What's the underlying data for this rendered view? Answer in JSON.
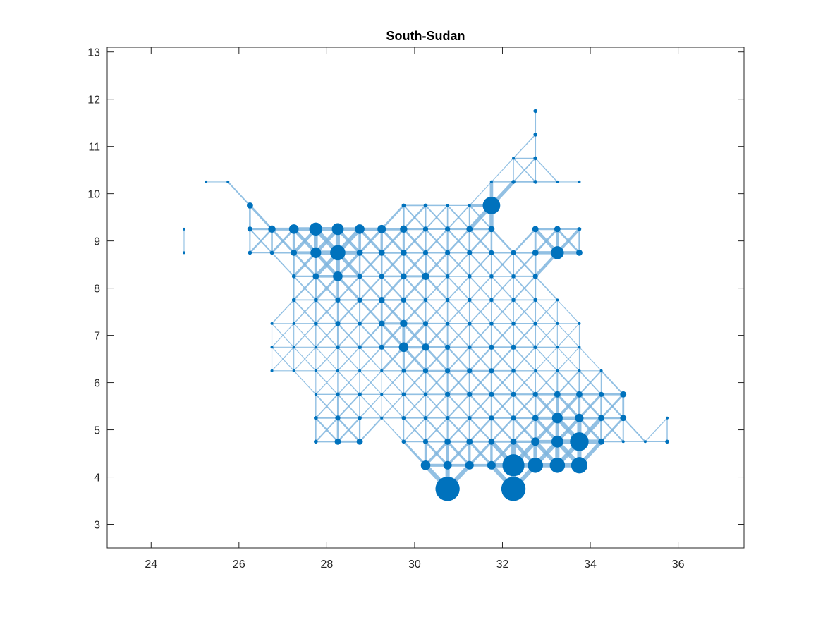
{
  "chart_data": {
    "type": "scatter",
    "title": "South-Sudan",
    "xlabel": "",
    "ylabel": "",
    "xlim": [
      23,
      37.5
    ],
    "ylim": [
      2.5,
      13.1
    ],
    "x_ticks": [
      "24",
      "26",
      "28",
      "30",
      "32",
      "34",
      "36"
    ],
    "y_ticks": [
      "3",
      "4",
      "5",
      "6",
      "7",
      "8",
      "9",
      "10",
      "11",
      "12",
      "13"
    ],
    "grid": false,
    "grid_step": 0.5,
    "node_color": "#0072BD",
    "edge_color": "#7FB5DE",
    "nodes": [
      [
        32.75,
        11.75,
        1
      ],
      [
        32.75,
        11.25,
        1
      ],
      [
        32.25,
        10.75,
        0.5
      ],
      [
        32.75,
        10.75,
        1
      ],
      [
        25.25,
        10.25,
        0.5
      ],
      [
        25.75,
        10.25,
        0.5
      ],
      [
        31.75,
        10.25,
        0.5
      ],
      [
        32.25,
        10.25,
        1
      ],
      [
        32.75,
        10.25,
        1
      ],
      [
        33.25,
        10.25,
        0.5
      ],
      [
        33.75,
        10.25,
        0.5
      ],
      [
        26.25,
        9.75,
        2
      ],
      [
        29.75,
        9.75,
        1
      ],
      [
        30.25,
        9.75,
        1
      ],
      [
        30.75,
        9.75,
        0.5
      ],
      [
        31.25,
        9.75,
        0.5
      ],
      [
        31.75,
        9.75,
        7
      ],
      [
        24.75,
        9.25,
        0.5
      ],
      [
        26.25,
        9.25,
        1.5
      ],
      [
        26.75,
        9.25,
        2.5
      ],
      [
        27.25,
        9.25,
        3.5
      ],
      [
        27.75,
        9.25,
        5
      ],
      [
        28.25,
        9.25,
        4.5
      ],
      [
        28.75,
        9.25,
        3.5
      ],
      [
        29.25,
        9.25,
        3
      ],
      [
        29.75,
        9.25,
        2.5
      ],
      [
        30.25,
        9.25,
        1.5
      ],
      [
        30.75,
        9.25,
        1.5
      ],
      [
        31.25,
        9.25,
        2
      ],
      [
        31.75,
        9.25,
        2
      ],
      [
        32.75,
        9.25,
        2
      ],
      [
        33.25,
        9.25,
        2
      ],
      [
        33.75,
        9.25,
        1
      ],
      [
        24.75,
        8.75,
        0.5
      ],
      [
        26.25,
        8.75,
        1
      ],
      [
        26.75,
        8.75,
        1
      ],
      [
        27.25,
        8.75,
        2
      ],
      [
        27.75,
        8.75,
        4
      ],
      [
        28.25,
        8.75,
        6
      ],
      [
        28.75,
        8.75,
        2
      ],
      [
        29.25,
        8.75,
        2
      ],
      [
        29.75,
        8.75,
        2
      ],
      [
        30.25,
        8.75,
        1.5
      ],
      [
        30.75,
        8.75,
        1.5
      ],
      [
        31.25,
        8.75,
        1.5
      ],
      [
        31.75,
        8.75,
        1.5
      ],
      [
        32.25,
        8.75,
        1.5
      ],
      [
        32.75,
        8.75,
        2
      ],
      [
        33.25,
        8.75,
        5
      ],
      [
        33.75,
        8.75,
        2
      ],
      [
        27.25,
        8.25,
        1
      ],
      [
        27.75,
        8.25,
        2
      ],
      [
        28.25,
        8.25,
        3.5
      ],
      [
        28.75,
        8.25,
        1.5
      ],
      [
        29.25,
        8.25,
        1.5
      ],
      [
        29.75,
        8.25,
        2
      ],
      [
        30.25,
        8.25,
        2.5
      ],
      [
        30.75,
        8.25,
        1
      ],
      [
        31.25,
        8.25,
        1
      ],
      [
        31.75,
        8.25,
        1
      ],
      [
        32.25,
        8.25,
        1
      ],
      [
        32.75,
        8.25,
        1.5
      ],
      [
        27.25,
        7.75,
        1
      ],
      [
        27.75,
        7.75,
        1
      ],
      [
        28.25,
        7.75,
        1.5
      ],
      [
        28.75,
        7.75,
        1.5
      ],
      [
        29.25,
        7.75,
        2
      ],
      [
        29.75,
        7.75,
        1.5
      ],
      [
        30.25,
        7.75,
        1
      ],
      [
        30.75,
        7.75,
        1
      ],
      [
        31.25,
        7.75,
        1
      ],
      [
        31.75,
        7.75,
        1
      ],
      [
        32.25,
        7.75,
        1
      ],
      [
        32.75,
        7.75,
        1
      ],
      [
        33.25,
        7.75,
        0.5
      ],
      [
        26.75,
        7.25,
        0.5
      ],
      [
        27.25,
        7.25,
        0.5
      ],
      [
        27.75,
        7.25,
        1
      ],
      [
        28.25,
        7.25,
        1.5
      ],
      [
        28.75,
        7.25,
        1
      ],
      [
        29.25,
        7.25,
        2
      ],
      [
        29.75,
        7.25,
        2.5
      ],
      [
        30.25,
        7.25,
        1.5
      ],
      [
        30.75,
        7.25,
        1
      ],
      [
        31.25,
        7.25,
        1
      ],
      [
        31.75,
        7.25,
        1
      ],
      [
        32.25,
        7.25,
        1
      ],
      [
        32.75,
        7.25,
        1
      ],
      [
        33.25,
        7.25,
        0.5
      ],
      [
        33.75,
        7.25,
        0.5
      ],
      [
        26.75,
        6.75,
        0.5
      ],
      [
        27.25,
        6.75,
        0.5
      ],
      [
        27.75,
        6.75,
        0.5
      ],
      [
        28.25,
        6.75,
        1
      ],
      [
        28.75,
        6.75,
        1
      ],
      [
        29.25,
        6.75,
        1.5
      ],
      [
        29.75,
        6.75,
        3.5
      ],
      [
        30.25,
        6.75,
        2.5
      ],
      [
        30.75,
        6.75,
        1.5
      ],
      [
        31.25,
        6.75,
        1
      ],
      [
        31.75,
        6.75,
        1.5
      ],
      [
        32.25,
        6.75,
        1.5
      ],
      [
        32.75,
        6.75,
        1
      ],
      [
        33.25,
        6.75,
        0.5
      ],
      [
        33.75,
        6.75,
        0.5
      ],
      [
        26.75,
        6.25,
        0.5
      ],
      [
        27.25,
        6.25,
        0.5
      ],
      [
        27.75,
        6.25,
        0.5
      ],
      [
        28.25,
        6.25,
        0.5
      ],
      [
        28.75,
        6.25,
        0.5
      ],
      [
        29.25,
        6.25,
        0.5
      ],
      [
        29.75,
        6.25,
        1
      ],
      [
        30.25,
        6.25,
        1.5
      ],
      [
        30.75,
        6.25,
        1.5
      ],
      [
        31.25,
        6.25,
        1.5
      ],
      [
        31.75,
        6.25,
        1.5
      ],
      [
        32.25,
        6.25,
        1
      ],
      [
        32.75,
        6.25,
        0.5
      ],
      [
        33.25,
        6.25,
        0.5
      ],
      [
        33.75,
        6.25,
        0.5
      ],
      [
        34.25,
        6.25,
        0.5
      ],
      [
        27.75,
        5.75,
        0.5
      ],
      [
        28.25,
        5.75,
        1
      ],
      [
        28.75,
        5.75,
        1
      ],
      [
        29.25,
        5.75,
        0.5
      ],
      [
        29.75,
        5.75,
        1
      ],
      [
        30.25,
        5.75,
        1
      ],
      [
        30.75,
        5.75,
        1.5
      ],
      [
        31.25,
        5.75,
        1.5
      ],
      [
        31.75,
        5.75,
        1.5
      ],
      [
        32.25,
        5.75,
        1.5
      ],
      [
        32.75,
        5.75,
        1.5
      ],
      [
        33.25,
        5.75,
        2
      ],
      [
        33.75,
        5.75,
        2
      ],
      [
        34.25,
        5.75,
        1.5
      ],
      [
        34.75,
        5.75,
        2
      ],
      [
        27.75,
        5.25,
        1
      ],
      [
        28.25,
        5.25,
        1.5
      ],
      [
        28.75,
        5.25,
        1
      ],
      [
        29.25,
        5.25,
        0.5
      ],
      [
        29.75,
        5.25,
        1
      ],
      [
        30.25,
        5.25,
        1
      ],
      [
        30.75,
        5.25,
        1
      ],
      [
        31.25,
        5.25,
        1
      ],
      [
        31.75,
        5.25,
        1.5
      ],
      [
        32.25,
        5.25,
        1.5
      ],
      [
        32.75,
        5.25,
        2
      ],
      [
        33.25,
        5.25,
        4
      ],
      [
        33.75,
        5.25,
        3
      ],
      [
        34.25,
        5.25,
        2
      ],
      [
        34.75,
        5.25,
        2
      ],
      [
        35.75,
        5.25,
        0.5
      ],
      [
        27.75,
        4.75,
        1
      ],
      [
        28.25,
        4.75,
        2
      ],
      [
        28.75,
        4.75,
        2
      ],
      [
        29.75,
        4.75,
        1
      ],
      [
        30.25,
        4.75,
        1.5
      ],
      [
        30.75,
        4.75,
        2
      ],
      [
        31.25,
        4.75,
        2
      ],
      [
        31.75,
        4.75,
        2
      ],
      [
        32.25,
        4.75,
        2
      ],
      [
        32.75,
        4.75,
        3
      ],
      [
        33.25,
        4.75,
        4.5
      ],
      [
        33.75,
        4.75,
        7.5
      ],
      [
        34.25,
        4.75,
        2
      ],
      [
        34.75,
        4.75,
        0.5
      ],
      [
        35.25,
        4.75,
        0.5
      ],
      [
        35.75,
        4.75,
        1
      ],
      [
        30.25,
        4.25,
        3.5
      ],
      [
        30.75,
        4.25,
        3
      ],
      [
        31.25,
        4.25,
        3
      ],
      [
        31.75,
        4.25,
        3
      ],
      [
        32.25,
        4.25,
        9
      ],
      [
        32.75,
        4.25,
        6
      ],
      [
        33.25,
        4.25,
        6
      ],
      [
        33.75,
        4.25,
        6.5
      ],
      [
        30.75,
        3.75,
        10
      ],
      [
        32.25,
        3.75,
        10
      ]
    ]
  }
}
